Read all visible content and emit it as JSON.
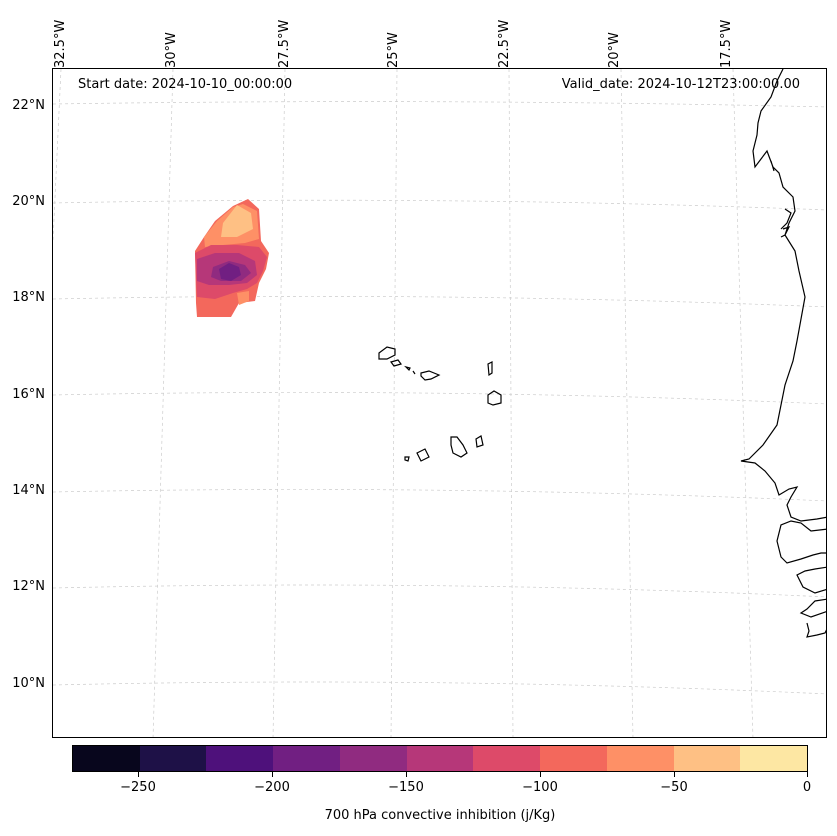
{
  "header": {
    "start_date": "Start date: 2024-10-10_00:00:00",
    "valid_date": "Valid_date: 2024-10-12T23:00:00.00"
  },
  "axes": {
    "longitude_labels": [
      "32.5°W",
      "30°W",
      "27.5°W",
      "25°W",
      "22.5°W",
      "20°W",
      "17.5°W"
    ],
    "latitude_labels": [
      "22°N",
      "20°N",
      "18°N",
      "16°N",
      "14°N",
      "12°N",
      "10°N"
    ]
  },
  "colorbar": {
    "title": "700 hPa convective inhibition (j/Kg)",
    "tick_labels": [
      "−250",
      "−200",
      "−150",
      "−100",
      "−50",
      "0"
    ],
    "colors": [
      "#08061d",
      "#1e1147",
      "#4e117b",
      "#711f82",
      "#902b80",
      "#b63779",
      "#dd4a69",
      "#f3685c",
      "#fe9066",
      "#fec084",
      "#fde7a3"
    ]
  },
  "field": {
    "variable": "700 hPa convective inhibition",
    "units": "j/Kg",
    "range": [
      -275,
      0
    ]
  }
}
